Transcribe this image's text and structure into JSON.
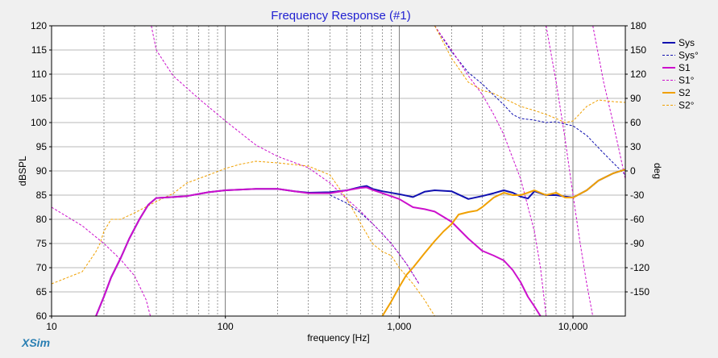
{
  "chart_data": {
    "type": "line",
    "title": "Frequency Response (#1)",
    "xlabel": "frequency [Hz]",
    "ylabel": "dBSPL",
    "y2label": "deg",
    "x_scale": "log",
    "xlim": [
      10,
      20000
    ],
    "ylim": [
      60,
      120
    ],
    "y2lim": [
      -180,
      180
    ],
    "x_tick_labels": [
      "10",
      "100",
      "1,000",
      "10,000"
    ],
    "x_tick_values": [
      10,
      100,
      1000,
      10000
    ],
    "y_ticks": [
      60,
      65,
      70,
      75,
      80,
      85,
      90,
      95,
      100,
      105,
      110,
      115,
      120
    ],
    "y2_ticks": [
      -150,
      -120,
      -90,
      -60,
      -30,
      0,
      30,
      60,
      90,
      120,
      150,
      180
    ],
    "grid": true,
    "legend_position": "right",
    "series": [
      {
        "name": "Sys",
        "axis": "left",
        "style": "solid",
        "color": "#1010b0",
        "points": [
          [
            18,
            60
          ],
          [
            20,
            64
          ],
          [
            22,
            68
          ],
          [
            25,
            72
          ],
          [
            28,
            76
          ],
          [
            32,
            80
          ],
          [
            36,
            83
          ],
          [
            40,
            84.4
          ],
          [
            50,
            84.6
          ],
          [
            60,
            84.8
          ],
          [
            80,
            85.6
          ],
          [
            100,
            86
          ],
          [
            150,
            86.3
          ],
          [
            200,
            86.3
          ],
          [
            250,
            85.8
          ],
          [
            300,
            85.5
          ],
          [
            400,
            85.6
          ],
          [
            500,
            86
          ],
          [
            600,
            86.7
          ],
          [
            650,
            86.9
          ],
          [
            700,
            86.3
          ],
          [
            800,
            85.8
          ],
          [
            1000,
            85.2
          ],
          [
            1200,
            84.6
          ],
          [
            1400,
            85.7
          ],
          [
            1600,
            86
          ],
          [
            2000,
            85.8
          ],
          [
            2500,
            84.2
          ],
          [
            3000,
            84.8
          ],
          [
            3500,
            85.4
          ],
          [
            4000,
            86
          ],
          [
            4500,
            85.5
          ],
          [
            5000,
            84.7
          ],
          [
            5500,
            84.3
          ],
          [
            6000,
            85.8
          ],
          [
            7000,
            85
          ],
          [
            8000,
            85
          ],
          [
            9000,
            84.7
          ],
          [
            10000,
            84.5
          ],
          [
            12000,
            86
          ],
          [
            14000,
            88
          ],
          [
            17000,
            89.5
          ],
          [
            20000,
            90.3
          ]
        ]
      },
      {
        "name": "Sys°",
        "axis": "right",
        "style": "dashed",
        "color": "#1010b0",
        "points": [
          [
            400,
            -30
          ],
          [
            500,
            -40
          ],
          [
            600,
            -52
          ],
          [
            700,
            -65
          ],
          [
            800,
            -78
          ],
          [
            900,
            -90
          ],
          [
            1000,
            -103
          ],
          [
            1100,
            -115
          ],
          [
            1200,
            -128
          ],
          [
            1300,
            -140
          ],
          [
            1600,
            180
          ],
          [
            2000,
            148
          ],
          [
            2500,
            122
          ],
          [
            3000,
            108
          ],
          [
            3500,
            94
          ],
          [
            4000,
            82
          ],
          [
            4500,
            70
          ],
          [
            5000,
            65
          ],
          [
            5500,
            64
          ],
          [
            6000,
            63
          ],
          [
            7000,
            60
          ],
          [
            8000,
            61
          ],
          [
            9000,
            58
          ],
          [
            10000,
            56
          ],
          [
            12000,
            44
          ],
          [
            15000,
            22
          ],
          [
            20000,
            -5
          ]
        ]
      },
      {
        "name": "S1",
        "axis": "left",
        "style": "solid",
        "color": "#cc10cc",
        "points": [
          [
            18,
            60
          ],
          [
            20,
            64
          ],
          [
            22,
            68
          ],
          [
            25,
            72
          ],
          [
            28,
            76
          ],
          [
            32,
            80
          ],
          [
            36,
            83
          ],
          [
            40,
            84.4
          ],
          [
            50,
            84.6
          ],
          [
            60,
            84.8
          ],
          [
            80,
            85.6
          ],
          [
            100,
            86
          ],
          [
            150,
            86.3
          ],
          [
            200,
            86.3
          ],
          [
            250,
            85.8
          ],
          [
            300,
            85.4
          ],
          [
            400,
            85.4
          ],
          [
            500,
            86
          ],
          [
            600,
            86.5
          ],
          [
            650,
            86.6
          ],
          [
            700,
            86.1
          ],
          [
            800,
            85.4
          ],
          [
            1000,
            84.2
          ],
          [
            1200,
            82.5
          ],
          [
            1400,
            82.1
          ],
          [
            1600,
            81.6
          ],
          [
            2000,
            79.5
          ],
          [
            2500,
            76
          ],
          [
            3000,
            73.5
          ],
          [
            3500,
            72.5
          ],
          [
            4000,
            71.5
          ],
          [
            4500,
            69.5
          ],
          [
            5000,
            67
          ],
          [
            5500,
            64
          ],
          [
            6000,
            62
          ],
          [
            6500,
            60
          ]
        ]
      },
      {
        "name": "S1°",
        "axis": "right",
        "style": "dashed",
        "color": "#cc10cc",
        "points": [
          [
            10,
            -45
          ],
          [
            15,
            -68
          ],
          [
            20,
            -90
          ],
          [
            25,
            -110
          ],
          [
            30,
            -130
          ],
          [
            35,
            -160
          ],
          [
            37,
            -180
          ],
          [
            37.5,
            180
          ],
          [
            40,
            150
          ],
          [
            50,
            118
          ],
          [
            70,
            90
          ],
          [
            100,
            62
          ],
          [
            150,
            32
          ],
          [
            200,
            18
          ],
          [
            300,
            4
          ],
          [
            400,
            -15
          ],
          [
            500,
            -35
          ],
          [
            600,
            -50
          ],
          [
            700,
            -65
          ],
          [
            800,
            -78
          ],
          [
            900,
            -90
          ],
          [
            1000,
            -103
          ],
          [
            1100,
            -115
          ],
          [
            1200,
            -128
          ],
          [
            1300,
            -140
          ],
          [
            1600,
            180
          ],
          [
            2000,
            150
          ],
          [
            2500,
            118
          ],
          [
            3000,
            95
          ],
          [
            3500,
            70
          ],
          [
            4000,
            45
          ],
          [
            5000,
            -10
          ],
          [
            6000,
            -75
          ],
          [
            6500,
            -120
          ],
          [
            7000,
            -180
          ],
          [
            7001,
            180
          ],
          [
            8000,
            110
          ],
          [
            9000,
            40
          ],
          [
            10000,
            -30
          ],
          [
            11000,
            -90
          ],
          [
            12000,
            -140
          ],
          [
            13000,
            -180
          ],
          [
            13001,
            180
          ],
          [
            15000,
            110
          ],
          [
            17000,
            60
          ],
          [
            20000,
            -10
          ]
        ]
      },
      {
        "name": "S2",
        "axis": "left",
        "style": "solid",
        "color": "#f0a000",
        "points": [
          [
            800,
            60
          ],
          [
            900,
            63
          ],
          [
            1000,
            66
          ],
          [
            1100,
            68.5
          ],
          [
            1200,
            70
          ],
          [
            1400,
            73
          ],
          [
            1600,
            75.5
          ],
          [
            1800,
            77.5
          ],
          [
            2000,
            79
          ],
          [
            2200,
            81
          ],
          [
            2500,
            81.5
          ],
          [
            2800,
            81.8
          ],
          [
            3000,
            82.5
          ],
          [
            3500,
            84.5
          ],
          [
            4000,
            85.5
          ],
          [
            4500,
            85
          ],
          [
            5000,
            85
          ],
          [
            5500,
            85.5
          ],
          [
            6000,
            86
          ],
          [
            7000,
            85
          ],
          [
            8000,
            85.5
          ],
          [
            9000,
            84.5
          ],
          [
            10000,
            84.5
          ],
          [
            12000,
            86
          ],
          [
            14000,
            88
          ],
          [
            17000,
            89.5
          ],
          [
            20000,
            90.3
          ]
        ]
      },
      {
        "name": "S2°",
        "axis": "right",
        "style": "dashed",
        "color": "#f0a000",
        "points": [
          [
            10,
            -140
          ],
          [
            15,
            -125
          ],
          [
            18,
            -100
          ],
          [
            19,
            -90
          ],
          [
            20,
            -75
          ],
          [
            22,
            -60
          ],
          [
            25,
            -60
          ],
          [
            30,
            -52
          ],
          [
            40,
            -38
          ],
          [
            50,
            -28
          ],
          [
            60,
            -15
          ],
          [
            80,
            -5
          ],
          [
            100,
            3
          ],
          [
            120,
            8
          ],
          [
            150,
            12
          ],
          [
            200,
            10
          ],
          [
            300,
            6
          ],
          [
            400,
            -5
          ],
          [
            500,
            -35
          ],
          [
            600,
            -65
          ],
          [
            700,
            -90
          ],
          [
            800,
            -100
          ],
          [
            900,
            -105
          ],
          [
            1000,
            -120
          ],
          [
            1200,
            -140
          ],
          [
            1400,
            -160
          ],
          [
            1600,
            -180
          ],
          [
            1601,
            180
          ],
          [
            2000,
            140
          ],
          [
            2500,
            110
          ],
          [
            3000,
            100
          ],
          [
            3500,
            96
          ],
          [
            4000,
            90
          ],
          [
            5000,
            80
          ],
          [
            6000,
            75
          ],
          [
            7000,
            70
          ],
          [
            8000,
            65
          ],
          [
            9000,
            60
          ],
          [
            10000,
            62
          ],
          [
            12000,
            80
          ],
          [
            14000,
            88
          ],
          [
            17000,
            86
          ],
          [
            20000,
            85
          ]
        ]
      }
    ]
  },
  "branding": {
    "logo_text": "XSim"
  }
}
